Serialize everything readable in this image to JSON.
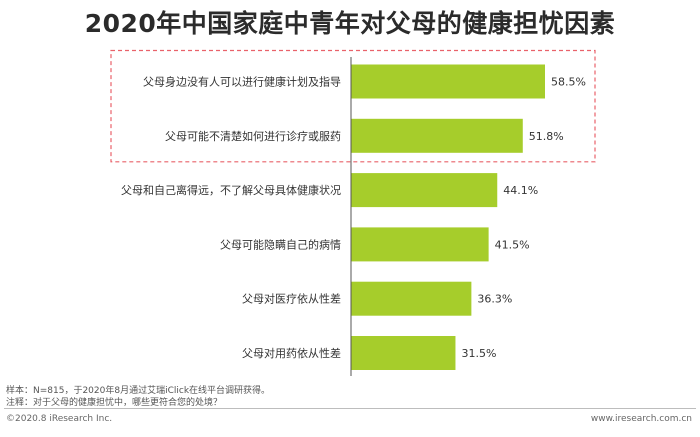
{
  "title": "2020年中国家庭中青年对父母的健康担忧因素",
  "chart_data": {
    "type": "bar",
    "orientation": "horizontal",
    "categories": [
      "父母身边没有人可以进行健康计划及指导",
      "父母可能不清楚如何进行诊疗或服药",
      "父母和自己离得远，不了解父母具体健康状况",
      "父母可能隐瞒自己的病情",
      "父母对医疗依从性差",
      "父母对用药依从性差"
    ],
    "values": [
      58.5,
      51.8,
      44.1,
      41.5,
      36.3,
      31.5
    ],
    "value_labels": [
      "58.5%",
      "51.8%",
      "44.1%",
      "41.5%",
      "36.3%",
      "31.5%"
    ],
    "xlim": [
      0,
      70
    ],
    "bar_color": "#a6cd2b",
    "highlight_box_categories": [
      0,
      1
    ],
    "highlight_box_color": "#e9626a",
    "grid": false
  },
  "notes": {
    "sample": "样本：N=815，于2020年8月通过艾瑞iClick在线平台调研获得。",
    "remark": "注释：对于父母的健康担忧中，哪些更符合您的处境？"
  },
  "footer": {
    "copyright": "©2020.8 iResearch Inc.",
    "website": "www.iresearch.com.cn"
  }
}
